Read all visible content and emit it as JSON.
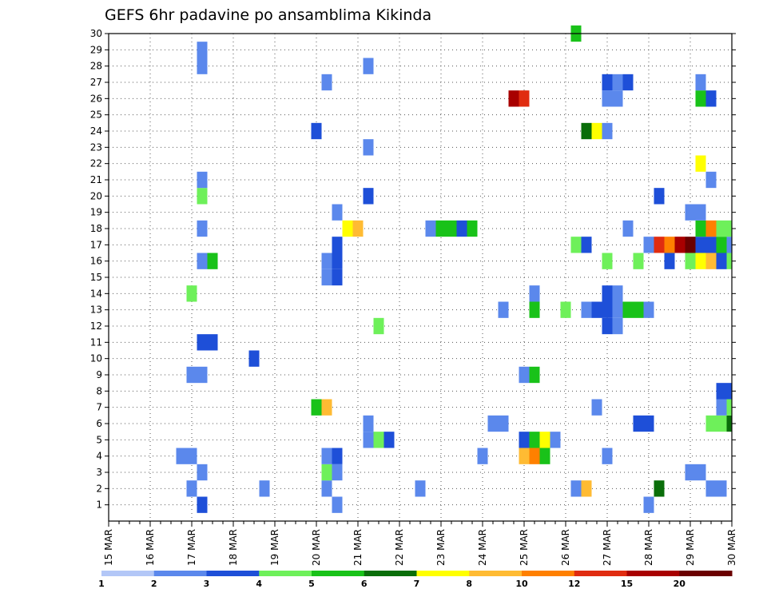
{
  "chart_data": {
    "type": "heatmap",
    "title": "GEFS 6hr padavine po ansamblima Kikinda",
    "xlabel": "",
    "ylabel": "",
    "x_tick_labels": [
      "15 MAR",
      "16 MAR",
      "17 MAR",
      "18 MAR",
      "19 MAR",
      "20 MAR",
      "21 MAR",
      "22 MAR",
      "23 MAR",
      "24 MAR",
      "25 MAR",
      "26 MAR",
      "27 MAR",
      "28 MAR",
      "29 MAR",
      "30 MAR"
    ],
    "y_tick_labels": [
      "1",
      "2",
      "3",
      "4",
      "5",
      "6",
      "7",
      "8",
      "9",
      "10",
      "11",
      "12",
      "13",
      "14",
      "15",
      "16",
      "17",
      "18",
      "19",
      "20",
      "21",
      "22",
      "23",
      "24",
      "25",
      "26",
      "27",
      "28",
      "29",
      "30"
    ],
    "x_range": [
      "15 MAR 00Z",
      "30 MAR 00Z"
    ],
    "y_range": [
      1,
      30
    ],
    "time_step_hours": 6,
    "grid": true,
    "colorbar": {
      "placement": "bottom",
      "labels": [
        "1",
        "2",
        "3",
        "4",
        "5",
        "6",
        "7",
        "8",
        "10",
        "12",
        "15",
        "20"
      ],
      "colors": [
        "#b3c7f7",
        "#5b88ec",
        "#1e4fd8",
        "#6ef05a",
        "#19c219",
        "#0a6e0a",
        "#ffff00",
        "#ffbb33",
        "#ff8000",
        "#e02c10",
        "#a80000",
        "#6b0000"
      ]
    },
    "cells_note": "Each cell = [time_step_index_from_15_MAR_00Z, ensemble_member, color_class_index]",
    "cells": [
      [
        9,
        1,
        2
      ],
      [
        22,
        1,
        1
      ],
      [
        52,
        1,
        1
      ],
      [
        8,
        2,
        1
      ],
      [
        15,
        2,
        1
      ],
      [
        21,
        2,
        1
      ],
      [
        30,
        2,
        1
      ],
      [
        45,
        2,
        1
      ],
      [
        46,
        2,
        7
      ],
      [
        53,
        2,
        5
      ],
      [
        58,
        2,
        1
      ],
      [
        59,
        2,
        1
      ],
      [
        70,
        2,
        1
      ],
      [
        9,
        3,
        1
      ],
      [
        21,
        3,
        3
      ],
      [
        22,
        3,
        1
      ],
      [
        56,
        3,
        1
      ],
      [
        57,
        3,
        1
      ],
      [
        7,
        4,
        1
      ],
      [
        8,
        4,
        1
      ],
      [
        21,
        4,
        1
      ],
      [
        22,
        4,
        2
      ],
      [
        36,
        4,
        1
      ],
      [
        40,
        4,
        7
      ],
      [
        41,
        4,
        8
      ],
      [
        42,
        4,
        4
      ],
      [
        48,
        4,
        1
      ],
      [
        71,
        4,
        1
      ],
      [
        25,
        5,
        1
      ],
      [
        26,
        5,
        3
      ],
      [
        27,
        5,
        2
      ],
      [
        40,
        5,
        2
      ],
      [
        41,
        5,
        4
      ],
      [
        42,
        5,
        6
      ],
      [
        43,
        5,
        1
      ],
      [
        72,
        5,
        3
      ],
      [
        25,
        6,
        1
      ],
      [
        37,
        6,
        1
      ],
      [
        38,
        6,
        1
      ],
      [
        51,
        6,
        2
      ],
      [
        52,
        6,
        2
      ],
      [
        58,
        6,
        3
      ],
      [
        59,
        6,
        3
      ],
      [
        60,
        6,
        5
      ],
      [
        61,
        6,
        8
      ],
      [
        62,
        6,
        6
      ],
      [
        63,
        6,
        1
      ],
      [
        65,
        6,
        1
      ],
      [
        66,
        6,
        1
      ],
      [
        70,
        6,
        2
      ],
      [
        71,
        6,
        1
      ],
      [
        20,
        7,
        4
      ],
      [
        21,
        7,
        7
      ],
      [
        47,
        7,
        1
      ],
      [
        59,
        7,
        1
      ],
      [
        60,
        7,
        3
      ],
      [
        59,
        8,
        2
      ],
      [
        60,
        8,
        2
      ],
      [
        61,
        8,
        1
      ],
      [
        8,
        9,
        1
      ],
      [
        9,
        9,
        1
      ],
      [
        40,
        9,
        1
      ],
      [
        41,
        9,
        4
      ],
      [
        67,
        9,
        7
      ],
      [
        68,
        9,
        5
      ],
      [
        14,
        10,
        2
      ],
      [
        69,
        10,
        1
      ],
      [
        71,
        10,
        2
      ],
      [
        72,
        10,
        2
      ],
      [
        9,
        11,
        2
      ],
      [
        10,
        11,
        2
      ],
      [
        26,
        12,
        3
      ],
      [
        48,
        12,
        2
      ],
      [
        49,
        12,
        1
      ],
      [
        68,
        12,
        4
      ],
      [
        38,
        13,
        1
      ],
      [
        41,
        13,
        4
      ],
      [
        44,
        13,
        3
      ],
      [
        46,
        13,
        1
      ],
      [
        47,
        13,
        2
      ],
      [
        48,
        13,
        2
      ],
      [
        49,
        13,
        1
      ],
      [
        50,
        13,
        4
      ],
      [
        51,
        13,
        4
      ],
      [
        52,
        13,
        1
      ],
      [
        62,
        13,
        1
      ],
      [
        63,
        13,
        3
      ],
      [
        67,
        13,
        3
      ],
      [
        68,
        13,
        5
      ],
      [
        70,
        13,
        1
      ],
      [
        71,
        13,
        11
      ],
      [
        72,
        13,
        1
      ],
      [
        8,
        14,
        3
      ],
      [
        41,
        14,
        1
      ],
      [
        48,
        14,
        2
      ],
      [
        49,
        14,
        1
      ],
      [
        21,
        15,
        1
      ],
      [
        22,
        15,
        2
      ],
      [
        9,
        16,
        1
      ],
      [
        10,
        16,
        4
      ],
      [
        21,
        16,
        1
      ],
      [
        22,
        16,
        2
      ],
      [
        48,
        16,
        3
      ],
      [
        51,
        16,
        3
      ],
      [
        54,
        16,
        2
      ],
      [
        56,
        16,
        3
      ],
      [
        57,
        16,
        6
      ],
      [
        58,
        16,
        7
      ],
      [
        59,
        16,
        2
      ],
      [
        60,
        16,
        3
      ],
      [
        61,
        16,
        1
      ],
      [
        62,
        16,
        1
      ],
      [
        22,
        17,
        2
      ],
      [
        45,
        17,
        3
      ],
      [
        46,
        17,
        2
      ],
      [
        52,
        17,
        1
      ],
      [
        53,
        17,
        9
      ],
      [
        54,
        17,
        8
      ],
      [
        55,
        17,
        10
      ],
      [
        56,
        17,
        11
      ],
      [
        57,
        17,
        2
      ],
      [
        58,
        17,
        2
      ],
      [
        59,
        17,
        4
      ],
      [
        60,
        17,
        1
      ],
      [
        9,
        18,
        1
      ],
      [
        23,
        18,
        6
      ],
      [
        24,
        18,
        7
      ],
      [
        31,
        18,
        1
      ],
      [
        32,
        18,
        4
      ],
      [
        33,
        18,
        4
      ],
      [
        34,
        18,
        2
      ],
      [
        35,
        18,
        4
      ],
      [
        50,
        18,
        1
      ],
      [
        57,
        18,
        4
      ],
      [
        58,
        18,
        8
      ],
      [
        59,
        18,
        3
      ],
      [
        60,
        18,
        3
      ],
      [
        22,
        19,
        1
      ],
      [
        56,
        19,
        1
      ],
      [
        57,
        19,
        1
      ],
      [
        9,
        20,
        3
      ],
      [
        25,
        20,
        2
      ],
      [
        53,
        20,
        2
      ],
      [
        9,
        21,
        1
      ],
      [
        58,
        21,
        1
      ],
      [
        57,
        22,
        6
      ],
      [
        63,
        22,
        8
      ],
      [
        25,
        23,
        1
      ],
      [
        69,
        23,
        1
      ],
      [
        71,
        23,
        1
      ],
      [
        72,
        23,
        1
      ],
      [
        20,
        24,
        2
      ],
      [
        46,
        24,
        5
      ],
      [
        47,
        24,
        6
      ],
      [
        48,
        24,
        1
      ],
      [
        63,
        24,
        1
      ],
      [
        64,
        24,
        2
      ],
      [
        68,
        25,
        3
      ],
      [
        39,
        26,
        10
      ],
      [
        40,
        26,
        9
      ],
      [
        48,
        26,
        1
      ],
      [
        49,
        26,
        1
      ],
      [
        57,
        26,
        4
      ],
      [
        58,
        26,
        2
      ],
      [
        67,
        26,
        2
      ],
      [
        68,
        26,
        1
      ],
      [
        21,
        27,
        1
      ],
      [
        48,
        27,
        2
      ],
      [
        49,
        27,
        1
      ],
      [
        50,
        27,
        2
      ],
      [
        57,
        27,
        1
      ],
      [
        9,
        28,
        1
      ],
      [
        25,
        28,
        1
      ],
      [
        9,
        29,
        1
      ],
      [
        45,
        30,
        4
      ]
    ]
  }
}
